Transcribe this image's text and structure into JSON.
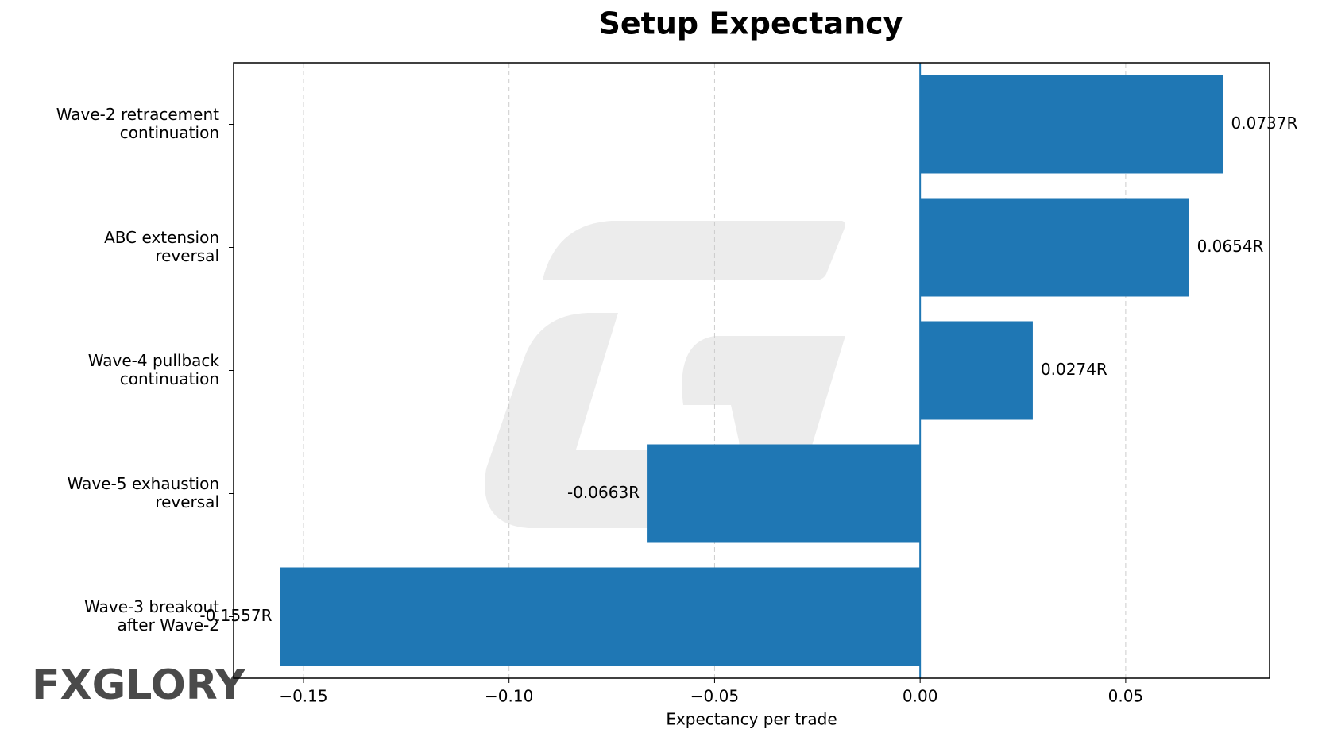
{
  "chart_data": {
    "type": "barh",
    "title": "Setup Expectancy",
    "x_label": "Expectancy per trade",
    "categories": [
      "Wave-2 retracement\ncontinuation",
      "ABC extension\nreversal",
      "Wave-4 pullback\ncontinuation",
      "Wave-5 exhaustion\nreversal",
      "Wave-3 breakout\nafter Wave-2"
    ],
    "values": [
      0.0737,
      0.0654,
      0.0274,
      -0.0663,
      -0.1557
    ],
    "value_labels": [
      "0.0737R",
      "0.0654R",
      "0.0274R",
      "-0.0663R",
      "-0.1557R"
    ],
    "color": "#1f77b4",
    "xlim": [
      -0.167,
      0.085
    ],
    "xticks": [
      {
        "value": -0.15,
        "label": "−0.15"
      },
      {
        "value": -0.1,
        "label": "−0.10"
      },
      {
        "value": -0.05,
        "label": "−0.05"
      },
      {
        "value": 0,
        "label": "0.00"
      },
      {
        "value": 0.05,
        "label": "0.05"
      }
    ],
    "grid": true
  },
  "logo": "FXGLORY"
}
